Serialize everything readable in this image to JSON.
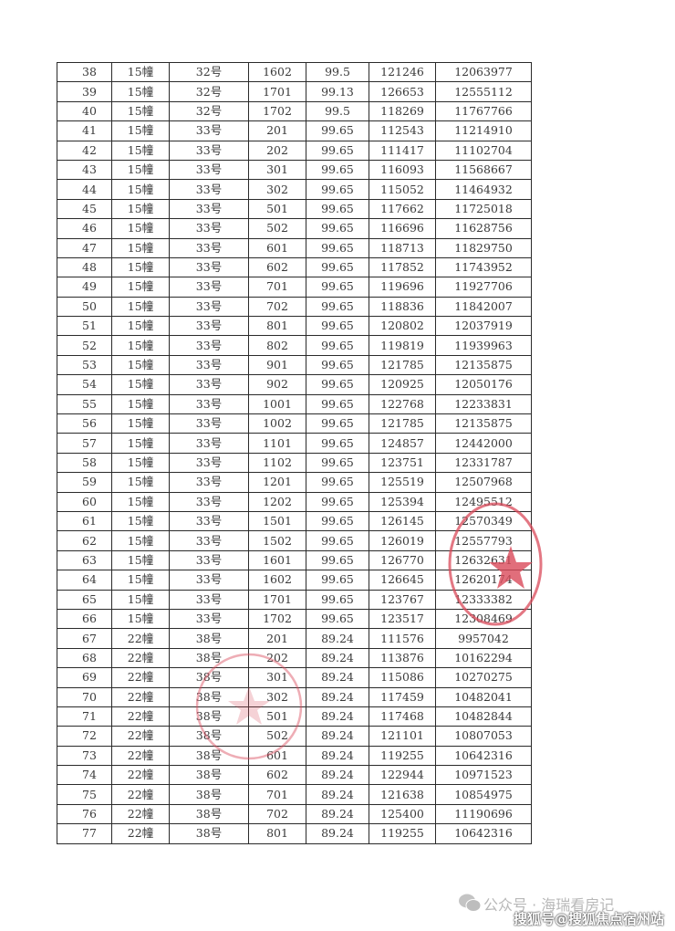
{
  "table": {
    "rows": [
      [
        "38",
        "15幢",
        "32号",
        "1602",
        "99.5",
        "121246",
        "12063977"
      ],
      [
        "39",
        "15幢",
        "32号",
        "1701",
        "99.13",
        "126653",
        "12555112"
      ],
      [
        "40",
        "15幢",
        "32号",
        "1702",
        "99.5",
        "118269",
        "11767766"
      ],
      [
        "41",
        "15幢",
        "33号",
        "201",
        "99.65",
        "112543",
        "11214910"
      ],
      [
        "42",
        "15幢",
        "33号",
        "202",
        "99.65",
        "111417",
        "11102704"
      ],
      [
        "43",
        "15幢",
        "33号",
        "301",
        "99.65",
        "116093",
        "11568667"
      ],
      [
        "44",
        "15幢",
        "33号",
        "302",
        "99.65",
        "115052",
        "11464932"
      ],
      [
        "45",
        "15幢",
        "33号",
        "501",
        "99.65",
        "117662",
        "11725018"
      ],
      [
        "46",
        "15幢",
        "33号",
        "502",
        "99.65",
        "116696",
        "11628756"
      ],
      [
        "47",
        "15幢",
        "33号",
        "601",
        "99.65",
        "118713",
        "11829750"
      ],
      [
        "48",
        "15幢",
        "33号",
        "602",
        "99.65",
        "117852",
        "11743952"
      ],
      [
        "49",
        "15幢",
        "33号",
        "701",
        "99.65",
        "119696",
        "11927706"
      ],
      [
        "50",
        "15幢",
        "33号",
        "702",
        "99.65",
        "118836",
        "11842007"
      ],
      [
        "51",
        "15幢",
        "33号",
        "801",
        "99.65",
        "120802",
        "12037919"
      ],
      [
        "52",
        "15幢",
        "33号",
        "802",
        "99.65",
        "119819",
        "11939963"
      ],
      [
        "53",
        "15幢",
        "33号",
        "901",
        "99.65",
        "121785",
        "12135875"
      ],
      [
        "54",
        "15幢",
        "33号",
        "902",
        "99.65",
        "120925",
        "12050176"
      ],
      [
        "55",
        "15幢",
        "33号",
        "1001",
        "99.65",
        "122768",
        "12233831"
      ],
      [
        "56",
        "15幢",
        "33号",
        "1002",
        "99.65",
        "121785",
        "12135875"
      ],
      [
        "57",
        "15幢",
        "33号",
        "1101",
        "99.65",
        "124857",
        "12442000"
      ],
      [
        "58",
        "15幢",
        "33号",
        "1102",
        "99.65",
        "123751",
        "12331787"
      ],
      [
        "59",
        "15幢",
        "33号",
        "1201",
        "99.65",
        "125519",
        "12507968"
      ],
      [
        "60",
        "15幢",
        "33号",
        "1202",
        "99.65",
        "125394",
        "12495512"
      ],
      [
        "61",
        "15幢",
        "33号",
        "1501",
        "99.65",
        "126145",
        "12570349"
      ],
      [
        "62",
        "15幢",
        "33号",
        "1502",
        "99.65",
        "126019",
        "12557793"
      ],
      [
        "63",
        "15幢",
        "33号",
        "1601",
        "99.65",
        "126770",
        "12632631"
      ],
      [
        "64",
        "15幢",
        "33号",
        "1602",
        "99.65",
        "126645",
        "12620174"
      ],
      [
        "65",
        "15幢",
        "33号",
        "1701",
        "99.65",
        "123767",
        "12333382"
      ],
      [
        "66",
        "15幢",
        "33号",
        "1702",
        "99.65",
        "123517",
        "12308469"
      ],
      [
        "67",
        "22幢",
        "38号",
        "201",
        "89.24",
        "111576",
        "9957042"
      ],
      [
        "68",
        "22幢",
        "38号",
        "202",
        "89.24",
        "113876",
        "10162294"
      ],
      [
        "69",
        "22幢",
        "38号",
        "301",
        "89.24",
        "115086",
        "10270275"
      ],
      [
        "70",
        "22幢",
        "38号",
        "302",
        "89.24",
        "117459",
        "10482041"
      ],
      [
        "71",
        "22幢",
        "38号",
        "501",
        "89.24",
        "117468",
        "10482844"
      ],
      [
        "72",
        "22幢",
        "38号",
        "502",
        "89.24",
        "121101",
        "10807053"
      ],
      [
        "73",
        "22幢",
        "38号",
        "601",
        "89.24",
        "119255",
        "10642316"
      ],
      [
        "74",
        "22幢",
        "38号",
        "602",
        "89.24",
        "122944",
        "10971523"
      ],
      [
        "75",
        "22幢",
        "38号",
        "701",
        "89.24",
        "121638",
        "10854975"
      ],
      [
        "76",
        "22幢",
        "38号",
        "702",
        "89.24",
        "125400",
        "11190696"
      ],
      [
        "77",
        "22幢",
        "38号",
        "801",
        "89.24",
        "119255",
        "10642316"
      ]
    ]
  },
  "watermark": {
    "wechat_icon": "wechat-icon",
    "public_account": "公众号 · 海瑞看房记",
    "sohu": "搜狐号@搜狐焦点宿州站"
  },
  "colors": {
    "stamp": "#d94a5a"
  }
}
